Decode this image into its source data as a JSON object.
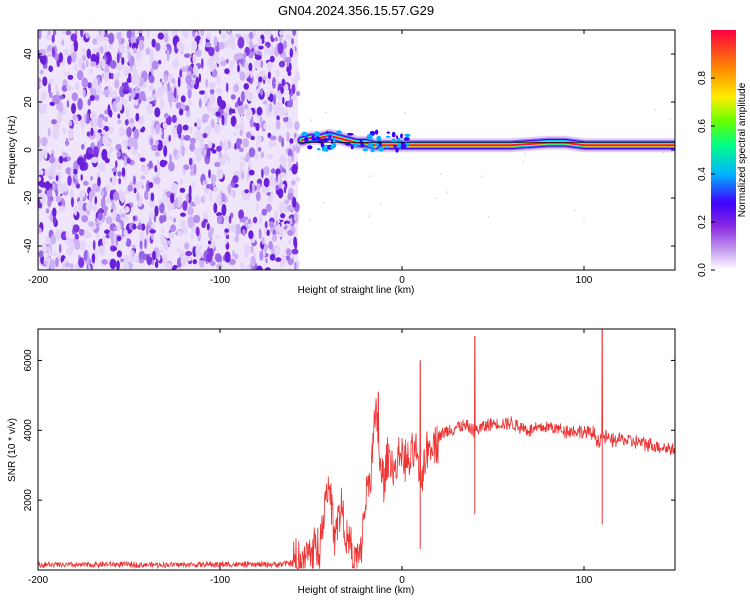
{
  "title": "GN04.2024.356.15.57.G29",
  "chart_data": [
    {
      "type": "heatmap",
      "xlabel": "Height of straight line (km)",
      "ylabel": "Frequency (Hz)",
      "xlim": [
        -200,
        150
      ],
      "ylim": [
        -50,
        50
      ],
      "x_ticks": [
        "-200",
        "-100",
        "0",
        "100"
      ],
      "y_ticks": [
        "-40",
        "-20",
        "0",
        "20",
        "40"
      ],
      "noise_region_x": [
        -200,
        -57
      ],
      "ridge": {
        "frequency_hz": 2,
        "x_start": -57,
        "x_end": 150,
        "points": [
          {
            "x": -55,
            "y": 4
          },
          {
            "x": -50,
            "y": 5
          },
          {
            "x": -45,
            "y": 5
          },
          {
            "x": -40,
            "y": 6
          },
          {
            "x": -35,
            "y": 5
          },
          {
            "x": -30,
            "y": 4
          },
          {
            "x": -25,
            "y": 3
          },
          {
            "x": -20,
            "y": 3
          },
          {
            "x": -15,
            "y": 2
          },
          {
            "x": -10,
            "y": 2
          },
          {
            "x": -5,
            "y": 2
          },
          {
            "x": 0,
            "y": 2
          },
          {
            "x": 20,
            "y": 2
          },
          {
            "x": 40,
            "y": 2
          },
          {
            "x": 60,
            "y": 2
          },
          {
            "x": 80,
            "y": 3
          },
          {
            "x": 90,
            "y": 3
          },
          {
            "x": 100,
            "y": 2
          },
          {
            "x": 120,
            "y": 2
          },
          {
            "x": 150,
            "y": 2
          }
        ]
      },
      "colorbar": {
        "label": "Normalized spectral amplitude",
        "range": [
          0,
          1
        ],
        "ticks": [
          "0.0",
          "0.2",
          "0.4",
          "0.6",
          "0.8"
        ],
        "colors": [
          "#ffffff",
          "#8a2be2",
          "#3f00ff",
          "#00b4ff",
          "#00ff88",
          "#66ff00",
          "#ffee00",
          "#ff8800",
          "#ff0040"
        ]
      }
    },
    {
      "type": "line",
      "xlabel": "Height of straight line (km)",
      "ylabel": "SNR (10 * v/v)",
      "xlim": [
        -200,
        150
      ],
      "ylim": [
        0,
        6900
      ],
      "x_ticks": [
        "-200",
        "-100",
        "0",
        "100"
      ],
      "y_ticks": [
        "2000",
        "4000",
        "6000"
      ],
      "line_color": "#ee3333",
      "series": [
        {
          "x": [
            -200,
            -180,
            -160,
            -140,
            -120,
            -100,
            -80,
            -65,
            -55,
            -45,
            -43,
            -40,
            -37,
            -33,
            -30,
            -26,
            -23,
            -20,
            -17,
            -14,
            -12,
            -10,
            -7,
            -4,
            -1,
            3,
            6,
            8,
            10,
            12,
            16,
            20,
            25,
            30,
            35,
            40,
            45,
            50,
            60,
            70,
            80,
            90,
            100,
            105,
            108,
            110,
            112,
            115,
            120,
            130,
            140,
            150
          ],
          "y": [
            150,
            140,
            160,
            150,
            150,
            160,
            150,
            170,
            250,
            800,
            1600,
            2300,
            1200,
            1800,
            800,
            300,
            350,
            2000,
            2900,
            4600,
            2800,
            2500,
            3300,
            2800,
            3400,
            3000,
            3200,
            3500,
            1900,
            3200,
            3700,
            3800,
            4000,
            4100,
            4100,
            4000,
            4100,
            4200,
            4200,
            4000,
            4100,
            4000,
            3950,
            3900,
            3700,
            3850,
            3800,
            3700,
            3750,
            3650,
            3550,
            3450
          ]
        }
      ],
      "spikes": [
        {
          "x": -40,
          "y": 2400
        },
        {
          "x": -13,
          "y": 5100
        },
        {
          "x": 10,
          "y": 600
        },
        {
          "x": 10,
          "y": 6000
        },
        {
          "x": 40,
          "y": 1600
        },
        {
          "x": 40,
          "y": 6700
        },
        {
          "x": 110,
          "y": 1300
        },
        {
          "x": 110,
          "y": 6900
        }
      ]
    }
  ]
}
